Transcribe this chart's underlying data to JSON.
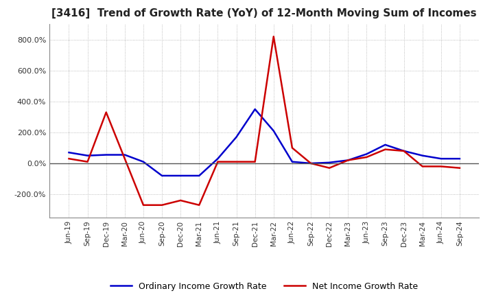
{
  "title": "[3416]  Trend of Growth Rate (YoY) of 12-Month Moving Sum of Incomes",
  "title_fontsize": 11,
  "x_labels": [
    "Jun-19",
    "Sep-19",
    "Dec-19",
    "Mar-20",
    "Jun-20",
    "Sep-20",
    "Dec-20",
    "Mar-21",
    "Jun-21",
    "Sep-21",
    "Dec-21",
    "Mar-22",
    "Jun-22",
    "Sep-22",
    "Dec-22",
    "Mar-23",
    "Jun-23",
    "Sep-23",
    "Dec-23",
    "Mar-24",
    "Jun-24",
    "Sep-24"
  ],
  "ordinary_pct": [
    70,
    50,
    55,
    55,
    10,
    -80,
    -80,
    -80,
    30,
    170,
    350,
    210,
    10,
    0,
    5,
    20,
    60,
    120,
    80,
    50,
    30,
    30
  ],
  "net_pct": [
    30,
    10,
    330,
    30,
    -270,
    -270,
    -240,
    -270,
    10,
    10,
    10,
    820,
    100,
    0,
    -30,
    20,
    40,
    90,
    80,
    -20,
    -20,
    -30
  ],
  "ordinary_color": "#0000cc",
  "net_color": "#cc0000",
  "legend_labels": [
    "Ordinary Income Growth Rate",
    "Net Income Growth Rate"
  ],
  "background_color": "#ffffff",
  "grid_color": "#aaaaaa",
  "grid_style": "dotted",
  "zero_line_color": "#555555",
  "ylim_min": -350,
  "ylim_max": 900,
  "yticks": [
    -200,
    0,
    200,
    400,
    600,
    800
  ]
}
